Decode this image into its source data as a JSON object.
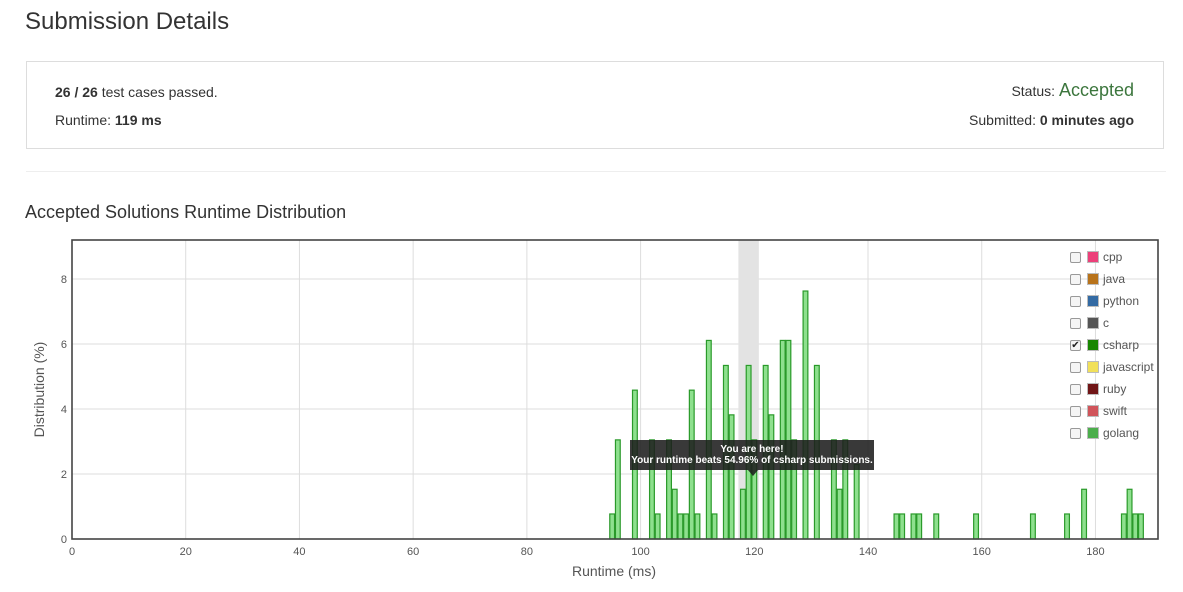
{
  "page": {
    "title": "Submission Details"
  },
  "summary": {
    "passed": "26",
    "slash": "/",
    "total": "26",
    "passed_text": "test cases passed.",
    "runtime_label": "Runtime:",
    "runtime_value": "119 ms",
    "status_label": "Status:",
    "status_value": "Accepted",
    "status_color": "#3c763d",
    "submitted_label": "Submitted:",
    "submitted_value": "0 minutes ago"
  },
  "section": {
    "title": "Accepted Solutions Runtime Distribution"
  },
  "legend": [
    {
      "label": "cpp",
      "color": "#ec407a",
      "checked": false
    },
    {
      "label": "java",
      "color": "#b8731b",
      "checked": false
    },
    {
      "label": "python",
      "color": "#336aa3",
      "checked": false
    },
    {
      "label": "c",
      "color": "#555555",
      "checked": false
    },
    {
      "label": "csharp",
      "color": "#178600",
      "checked": true
    },
    {
      "label": "javascript",
      "color": "#f1e05a",
      "checked": false
    },
    {
      "label": "ruby",
      "color": "#701516",
      "checked": false
    },
    {
      "label": "swift",
      "color": "#d0545a",
      "checked": false
    },
    {
      "label": "golang",
      "color": "#4cae4c",
      "checked": false
    }
  ],
  "tooltip": {
    "line1": "You are here!",
    "line2": "Your runtime beats 54.96% of csharp submissions."
  },
  "chart_data": {
    "type": "bar",
    "xlabel": "Runtime (ms)",
    "ylabel": "Distribution (%)",
    "xlim": [
      0,
      191
    ],
    "ylim": [
      0,
      9.2
    ],
    "xticks": [
      0,
      20,
      40,
      60,
      80,
      100,
      120,
      140,
      160,
      180
    ],
    "yticks": [
      0,
      2,
      4,
      6,
      8
    ],
    "grid": true,
    "highlight_x": 119,
    "bar_fill": "#8ee08e",
    "bar_stroke": "#2a9a2a",
    "series": [
      {
        "x": [
          95,
          96,
          99,
          102,
          103,
          105,
          106,
          107,
          108,
          109,
          110,
          112,
          113,
          115,
          116,
          118,
          119,
          120,
          122,
          123,
          125,
          126,
          127,
          129,
          131,
          134,
          135,
          136,
          138,
          145,
          146,
          148,
          149,
          152,
          159,
          169,
          175,
          178,
          185,
          186,
          187,
          188
        ],
        "values": [
          0.77,
          3.05,
          4.58,
          3.05,
          0.77,
          3.05,
          1.53,
          0.77,
          0.77,
          4.58,
          0.77,
          6.11,
          0.77,
          5.34,
          3.82,
          1.53,
          5.34,
          3.05,
          5.34,
          3.82,
          6.11,
          6.11,
          3.05,
          7.63,
          5.34,
          3.05,
          1.53,
          3.05,
          2.29,
          0.77,
          0.77,
          0.77,
          0.77,
          0.77,
          0.77,
          0.77,
          0.77,
          1.53,
          0.77,
          1.53,
          0.77,
          0.77
        ]
      }
    ]
  }
}
